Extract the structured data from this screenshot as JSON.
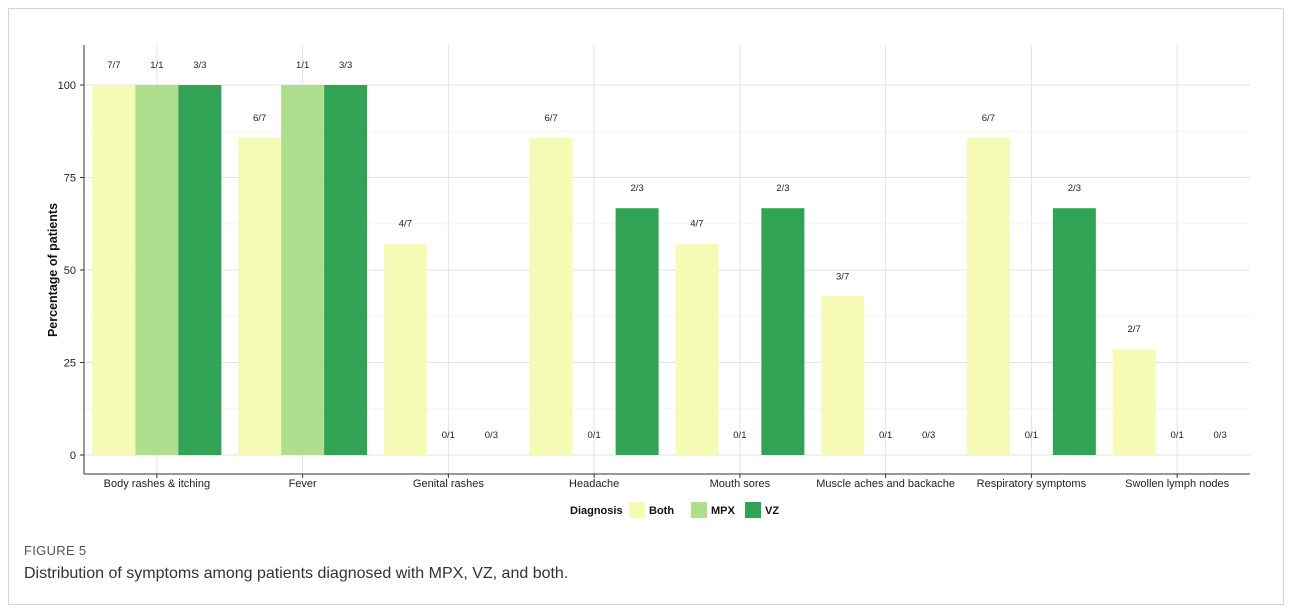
{
  "figure": {
    "label": "FIGURE 5",
    "caption": "Distribution of symptoms among patients diagnosed with MPX, VZ, and both."
  },
  "chart_data": {
    "type": "bar",
    "ylabel": "Percentage of patients",
    "xlabel": "",
    "ylim": [
      0,
      110
    ],
    "yticks": [
      0,
      25,
      50,
      75,
      100
    ],
    "grid": true,
    "legend": {
      "title": "Diagnosis",
      "position": "bottom"
    },
    "categories": [
      "Body rashes & itching",
      "Fever",
      "Genital rashes",
      "Headache",
      "Mouth sores",
      "Muscle aches and backache",
      "Respiratory symptoms",
      "Swollen lymph nodes"
    ],
    "series": [
      {
        "name": "Both",
        "color": "#f5fab5",
        "values": [
          100,
          85.7,
          57.1,
          85.7,
          57.1,
          42.9,
          85.7,
          28.6
        ],
        "labels": [
          "7/7",
          "6/7",
          "4/7",
          "6/7",
          "4/7",
          "3/7",
          "6/7",
          "2/7"
        ]
      },
      {
        "name": "MPX",
        "color": "#addf8e",
        "values": [
          100,
          100,
          0,
          0,
          0,
          0,
          0,
          0
        ],
        "labels": [
          "1/1",
          "1/1",
          "0/1",
          "0/1",
          "0/1",
          "0/1",
          "0/1",
          "0/1"
        ]
      },
      {
        "name": "VZ",
        "color": "#31a354",
        "values": [
          100,
          100,
          0,
          66.7,
          66.7,
          0,
          66.7,
          0
        ],
        "labels": [
          "3/3",
          "3/3",
          "0/3",
          "2/3",
          "2/3",
          "0/3",
          "2/3",
          "0/3"
        ]
      }
    ]
  }
}
